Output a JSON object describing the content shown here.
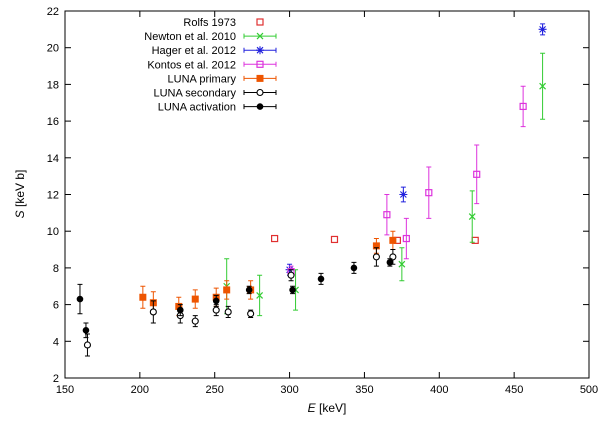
{
  "chart_data": {
    "type": "scatter",
    "xlabel_symbol": "E",
    "xlabel_unit": " [keV]",
    "ylabel_symbol": "S",
    "ylabel_unit": " [keV b]",
    "xlim": [
      150,
      500
    ],
    "ylim": [
      2,
      22
    ],
    "xticks": [
      150,
      200,
      250,
      300,
      350,
      400,
      450,
      500
    ],
    "yticks": [
      2,
      4,
      6,
      8,
      10,
      12,
      14,
      16,
      18,
      20,
      22
    ],
    "grid": false,
    "legend_position": "top-left",
    "series": [
      {
        "name": "Rolfs 1973",
        "color": "#e03030",
        "marker": "open-square",
        "errorbars": false,
        "points": [
          [
            290,
            9.6
          ],
          [
            330,
            9.55
          ],
          [
            372,
            9.5
          ],
          [
            424,
            9.5
          ]
        ]
      },
      {
        "name": "Newton et al. 2010",
        "color": "#33cc33",
        "marker": "cross",
        "errorbars": true,
        "points": [
          [
            258,
            7.0,
            1.5
          ],
          [
            280,
            6.5,
            1.1
          ],
          [
            304,
            6.8,
            1.1
          ],
          [
            375,
            8.2,
            0.9
          ],
          [
            422,
            10.8,
            1.4
          ],
          [
            469,
            17.9,
            1.8
          ]
        ]
      },
      {
        "name": "Hager et al. 2012",
        "color": "#2020dd",
        "marker": "star",
        "errorbars": true,
        "points": [
          [
            300,
            7.9,
            0.3
          ],
          [
            376,
            12.0,
            0.4
          ],
          [
            469,
            21.0,
            0.3
          ]
        ]
      },
      {
        "name": "Kontos et al. 2012",
        "color": "#dd33dd",
        "marker": "open-square",
        "errorbars": true,
        "points": [
          [
            301,
            7.8,
            0.3
          ],
          [
            365,
            10.9,
            1.1
          ],
          [
            378,
            9.6,
            1.1
          ],
          [
            393,
            12.1,
            1.4
          ],
          [
            425,
            13.1,
            1.6
          ],
          [
            456,
            16.8,
            1.1
          ]
        ]
      },
      {
        "name": "LUNA primary",
        "color": "#ee5500",
        "marker": "filled-square",
        "errorbars": true,
        "points": [
          [
            202,
            6.4,
            0.6
          ],
          [
            209,
            6.1,
            0.6
          ],
          [
            226,
            5.9,
            0.5
          ],
          [
            237,
            6.3,
            0.5
          ],
          [
            251,
            6.4,
            0.5
          ],
          [
            258,
            6.8,
            0.5
          ],
          [
            274,
            6.8,
            0.5
          ],
          [
            358,
            9.2,
            0.4
          ],
          [
            369,
            9.5,
            0.5
          ]
        ]
      },
      {
        "name": "LUNA secondary",
        "color": "#000000",
        "marker": "open-circle",
        "errorbars": true,
        "points": [
          [
            165,
            3.8,
            0.6
          ],
          [
            209,
            5.6,
            0.6
          ],
          [
            227,
            5.4,
            0.4
          ],
          [
            237,
            5.1,
            0.3
          ],
          [
            251,
            5.7,
            0.3
          ],
          [
            259,
            5.6,
            0.3
          ],
          [
            274,
            5.5,
            0.2
          ],
          [
            301,
            7.6,
            0.3
          ],
          [
            358,
            8.6,
            0.5
          ],
          [
            369,
            8.6,
            0.4
          ]
        ]
      },
      {
        "name": "LUNA activation",
        "color": "#000000",
        "marker": "filled-circle",
        "errorbars": true,
        "points": [
          [
            160,
            6.3,
            0.8
          ],
          [
            164,
            4.6,
            0.4
          ],
          [
            227,
            5.7,
            0.3
          ],
          [
            251,
            6.2,
            0.3
          ],
          [
            273,
            6.8,
            0.2
          ],
          [
            302,
            6.8,
            0.2
          ],
          [
            321,
            7.4,
            0.3
          ],
          [
            343,
            8.0,
            0.3
          ],
          [
            367,
            8.3,
            0.2
          ]
        ]
      }
    ]
  }
}
